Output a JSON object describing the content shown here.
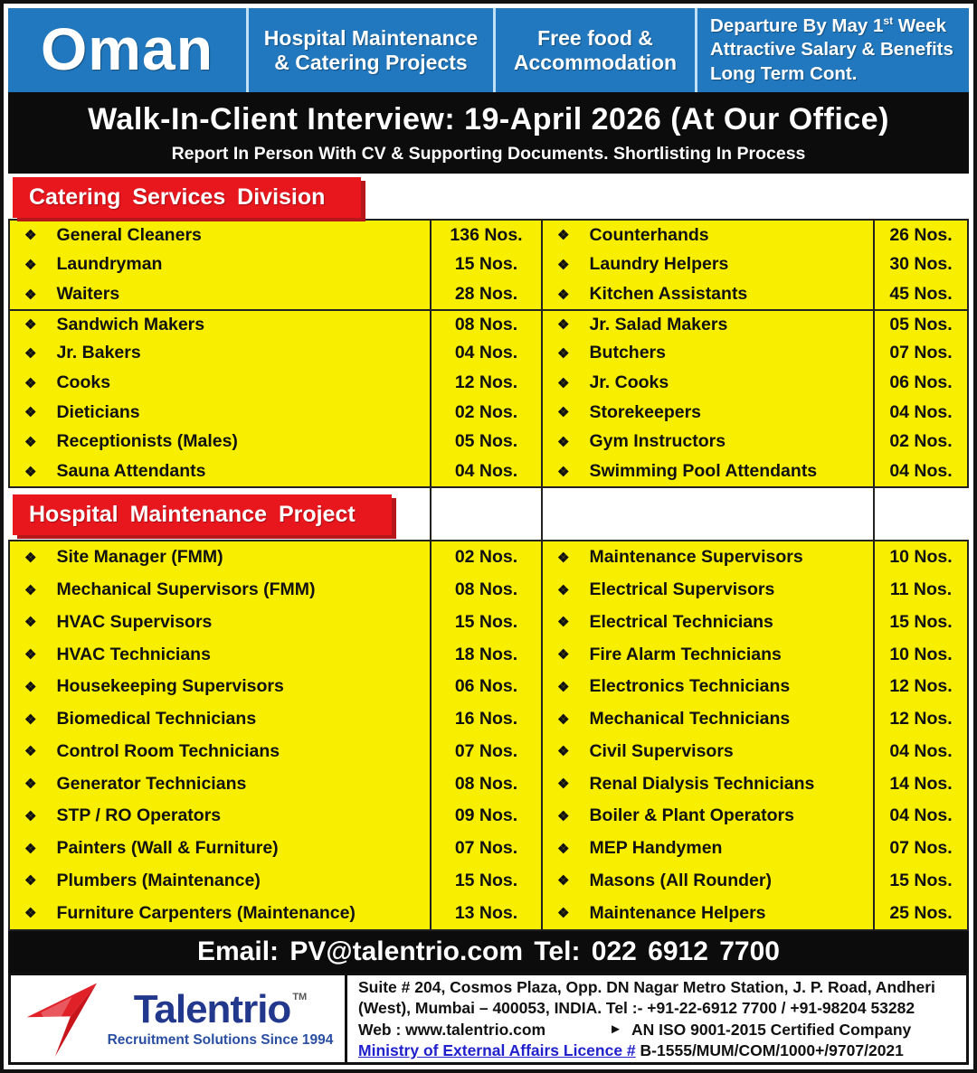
{
  "colors": {
    "blue": "#2178be",
    "red": "#e8161d",
    "yellow": "#f8ee00",
    "navy": "#22388c",
    "link": "#2121cc"
  },
  "bullet": "❖",
  "header": {
    "country": "Oman",
    "project_line1": "Hospital Maintenance",
    "project_line2": "& Catering Projects",
    "benefit_line1": "Free food &",
    "benefit_line2": "Accommodation",
    "departure": {
      "line1_pre": "Departure By May 1",
      "line1_sup": "st",
      "line1_post": " Week",
      "line2": "Attractive Salary & Benefits",
      "line3": "Long Term Cont."
    }
  },
  "interview": {
    "title": "Walk-In-Client Interview: 19-April 2026 (At Our Office)",
    "subtitle": "Report In Person With CV & Supporting Documents. Shortlisting In Process"
  },
  "sections": [
    {
      "title": "Catering Services Division",
      "group_break_after": 3,
      "rows": [
        [
          "General Cleaners",
          "136 Nos.",
          "Counterhands",
          "26 Nos."
        ],
        [
          "Laundryman",
          "15 Nos.",
          "Laundry Helpers",
          "30 Nos."
        ],
        [
          "Waiters",
          "28 Nos.",
          "Kitchen Assistants",
          "45 Nos."
        ],
        [
          "Sandwich Makers",
          "08 Nos.",
          "Jr. Salad Makers",
          "05 Nos."
        ],
        [
          "Jr. Bakers",
          "04 Nos.",
          "Butchers",
          "07 Nos."
        ],
        [
          "Cooks",
          "12 Nos.",
          "Jr. Cooks",
          "06 Nos."
        ],
        [
          "Dieticians",
          "02 Nos.",
          "Storekeepers",
          "04 Nos."
        ],
        [
          "Receptionists (Males)",
          "05 Nos.",
          "Gym Instructors",
          "02 Nos."
        ],
        [
          "Sauna Attendants",
          "04 Nos.",
          "Swimming Pool Attendants",
          "04 Nos."
        ]
      ]
    },
    {
      "title": "Hospital Maintenance Project",
      "rows": [
        [
          "Site Manager (FMM)",
          "02 Nos.",
          "Maintenance Supervisors",
          "10 Nos."
        ],
        [
          "Mechanical Supervisors (FMM)",
          "08 Nos.",
          "Electrical Supervisors",
          "11 Nos."
        ],
        [
          "HVAC Supervisors",
          "15 Nos.",
          "Electrical Technicians",
          "15 Nos."
        ],
        [
          "HVAC Technicians",
          "18 Nos.",
          "Fire Alarm Technicians",
          "10 Nos."
        ],
        [
          "Housekeeping Supervisors",
          "06 Nos.",
          "Electronics Technicians",
          "12 Nos."
        ],
        [
          "Biomedical Technicians",
          "16 Nos.",
          "Mechanical Technicians",
          "12 Nos."
        ],
        [
          "Control Room Technicians",
          "07 Nos.",
          "Civil Supervisors",
          "04 Nos."
        ],
        [
          "Generator Technicians",
          "08 Nos.",
          "Renal Dialysis Technicians",
          "14 Nos."
        ],
        [
          "STP / RO Operators",
          "09 Nos.",
          "Boiler & Plant Operators",
          "04 Nos."
        ],
        [
          "Painters (Wall & Furniture)",
          "07 Nos.",
          "MEP Handymen",
          "07 Nos."
        ],
        [
          "Plumbers (Maintenance)",
          "15 Nos.",
          "Masons (All Rounder)",
          "15 Nos."
        ],
        [
          "Furniture Carpenters (Maintenance)",
          "13 Nos.",
          "Maintenance Helpers",
          "25 Nos."
        ]
      ]
    }
  ],
  "contact_bar": "Email: PV@talentrio.com Tel: 022 6912 7700",
  "footer": {
    "brand": "Talentrio",
    "brand_tm": "TM",
    "tagline": "Recruitment Solutions Since 1994",
    "address_line1": "Suite # 204, Cosmos Plaza, Opp. DN Nagar Metro Station, J. P. Road, Andheri",
    "address_line2": "(West), Mumbai – 400053, INDIA.  Tel :- +91-22-6912 7700 / +91-98204 53282",
    "web_label": "Web : www.talentrio.com",
    "iso_arrow": "►",
    "iso_text": "AN ISO 9001-2015 Certified Company",
    "licence_label": "Ministry of External Affairs  Licence #",
    "licence_value": "B-1555/MUM/COM/1000+/9707/2021"
  }
}
